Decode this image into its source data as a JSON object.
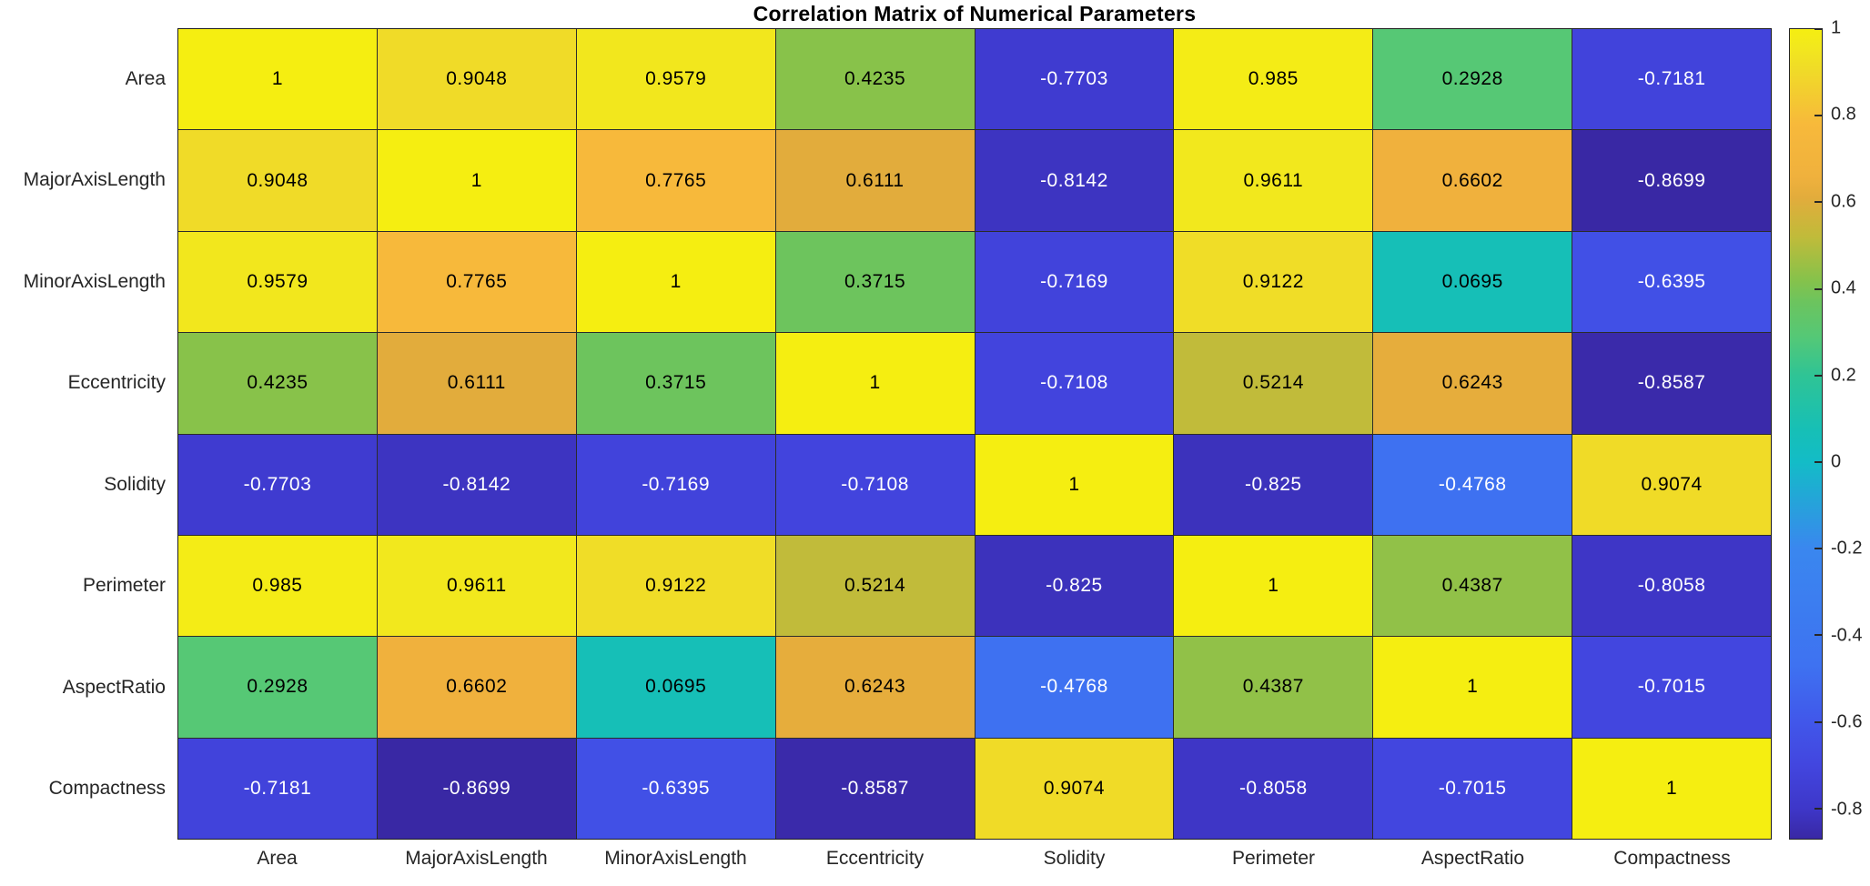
{
  "chart_data": {
    "type": "heatmap",
    "title": "Correlation Matrix of Numerical Parameters",
    "categories": [
      "Area",
      "MajorAxisLength",
      "MinorAxisLength",
      "Eccentricity",
      "Solidity",
      "Perimeter",
      "AspectRatio",
      "Compactness"
    ],
    "matrix": [
      [
        1,
        0.9048,
        0.9579,
        0.4235,
        -0.7703,
        0.985,
        0.2928,
        -0.7181
      ],
      [
        0.9048,
        1,
        0.7765,
        0.6111,
        -0.8142,
        0.9611,
        0.6602,
        -0.8699
      ],
      [
        0.9579,
        0.7765,
        1,
        0.3715,
        -0.7169,
        0.9122,
        0.0695,
        -0.6395
      ],
      [
        0.4235,
        0.6111,
        0.3715,
        1,
        -0.7108,
        0.5214,
        0.6243,
        -0.8587
      ],
      [
        -0.7703,
        -0.8142,
        -0.7169,
        -0.7108,
        1,
        -0.825,
        -0.4768,
        0.9074
      ],
      [
        0.985,
        0.9611,
        0.9122,
        0.5214,
        -0.825,
        1,
        0.4387,
        -0.8058
      ],
      [
        0.2928,
        0.6602,
        0.0695,
        0.6243,
        -0.4768,
        0.4387,
        1,
        -0.7015
      ],
      [
        -0.7181,
        -0.8699,
        -0.6395,
        -0.8587,
        0.9074,
        -0.8058,
        -0.7015,
        1
      ]
    ],
    "clim": [
      -0.8699,
      1
    ],
    "colorbar_ticks": [
      1,
      0.8,
      0.6,
      0.4,
      0.2,
      0,
      -0.2,
      -0.4,
      -0.6,
      -0.8
    ],
    "colormap_stops": [
      [
        -0.87,
        "#3928A4"
      ],
      [
        -0.8,
        "#3E37C9"
      ],
      [
        -0.7,
        "#4246DF"
      ],
      [
        -0.6,
        "#4157EA"
      ],
      [
        -0.47,
        "#3E72F1"
      ],
      [
        -0.2,
        "#3A87EF"
      ],
      [
        0.0,
        "#13BCC7"
      ],
      [
        0.07,
        "#16BFB7"
      ],
      [
        0.2,
        "#2FC495"
      ],
      [
        0.29,
        "#55C876"
      ],
      [
        0.37,
        "#6CC45E"
      ],
      [
        0.42,
        "#86C24B"
      ],
      [
        0.52,
        "#C0BB3A"
      ],
      [
        0.61,
        "#E2AC3C"
      ],
      [
        0.66,
        "#F0B13D"
      ],
      [
        0.78,
        "#F7B93B"
      ],
      [
        0.91,
        "#F0DC27"
      ],
      [
        0.96,
        "#F2E81D"
      ],
      [
        1.0,
        "#F5EE11"
      ]
    ],
    "grid_line_color": "#2b2b2b",
    "cell_text_dark": "#000000",
    "cell_text_light": "#ffffff",
    "axis_label_color": "#262626",
    "background": "#ffffff",
    "legend_position": "right-colorbar",
    "grid": "on"
  }
}
